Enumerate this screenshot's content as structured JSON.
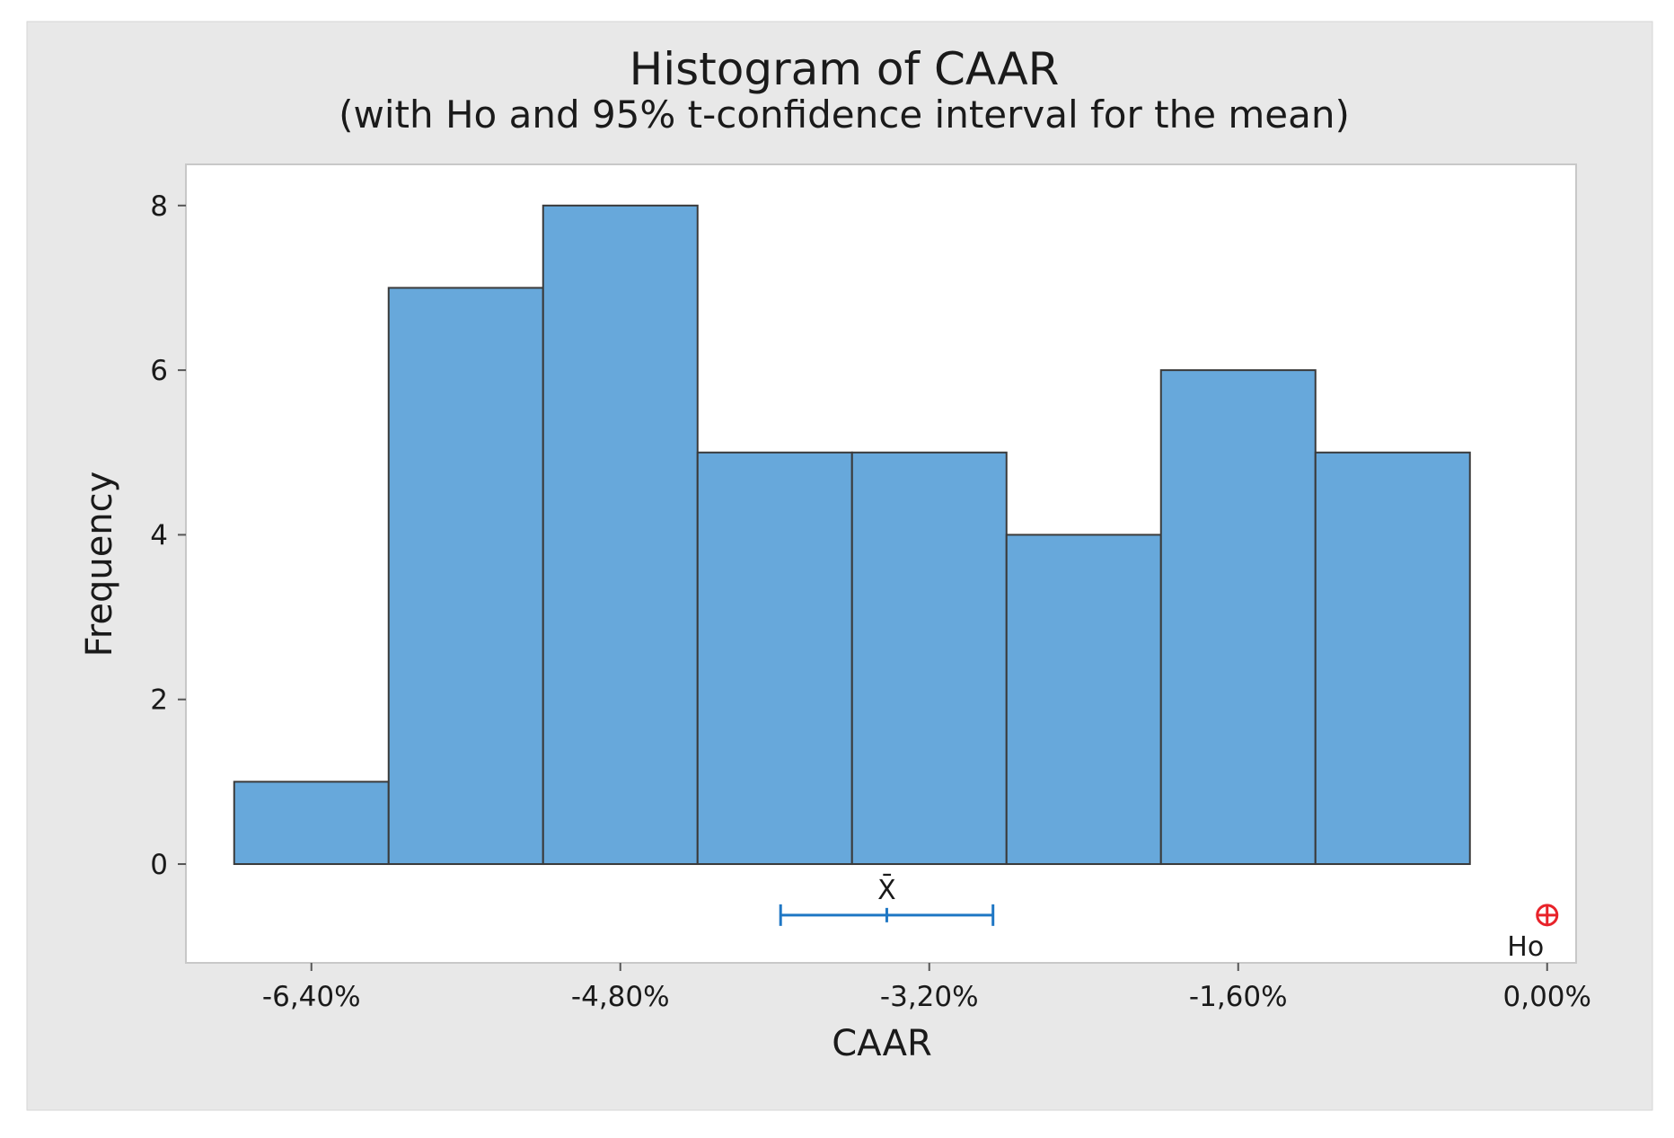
{
  "colors": {
    "background": "#e8e8e8",
    "plot_background": "#ffffff",
    "bar_fill": "#67a8db",
    "bar_stroke": "#3a3a3a",
    "interval": "#1f77c4",
    "ho_marker": "#e8232a"
  },
  "chart_data": {
    "type": "bar",
    "title": "Histogram of CAAR",
    "subtitle": "(with Ho and 95% t-confidence interval for the mean)",
    "xlabel": "CAAR",
    "ylabel": "Frequency",
    "bin_edges": [
      -6.8,
      -6.0,
      -5.2,
      -4.4,
      -3.6,
      -2.8,
      -2.0,
      -1.2,
      -0.4
    ],
    "values": [
      1,
      7,
      8,
      5,
      5,
      4,
      6,
      5
    ],
    "x_ticks": [
      -6.4,
      -4.8,
      -3.2,
      -1.6,
      0.0
    ],
    "x_tick_labels": [
      "-6,40%",
      "-4,80%",
      "-3,20%",
      "-1,60%",
      "0,00%"
    ],
    "y_ticks": [
      0,
      2,
      4,
      6,
      8
    ],
    "y_tick_labels": [
      "0",
      "2",
      "4",
      "6",
      "8"
    ],
    "xlim": [
      -7.05,
      0.15
    ],
    "ylim": [
      -1.2,
      8.5
    ],
    "confidence_interval": {
      "label": "X̄",
      "mean": -3.42,
      "lower": -3.97,
      "upper": -2.87,
      "level": "95%"
    },
    "null_hypothesis": {
      "label": "Ho",
      "value": 0.0
    },
    "grid": false
  }
}
